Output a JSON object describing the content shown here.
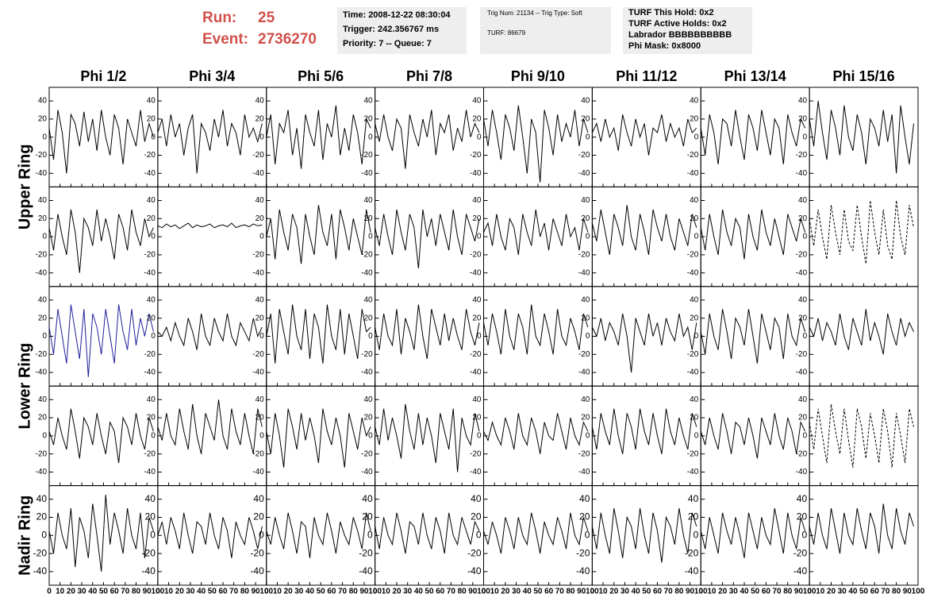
{
  "header": {
    "run_label": "Run:",
    "run": "25",
    "event_label": "Event:",
    "event": "2736270",
    "box1": [
      "Time: 2008-12-22 08:30:04",
      "Trigger: 242.356767 ms",
      "Priority: 7 -- Queue: 7"
    ],
    "box2": [
      "Trig Num: 21134 -- Trig Type: Soft",
      "TURF: 86679"
    ],
    "box3": [
      "TURF This Hold: 0x2",
      "TURF Active Holds: 0x2",
      "Labrador BBBBBBBBBB",
      "Phi Mask: 0x8000"
    ]
  },
  "chart_data": {
    "type": "line",
    "columns": [
      "Phi 1/2",
      "Phi 3/4",
      "Phi 5/6",
      "Phi 7/8",
      "Phi 9/10",
      "Phi 11/12",
      "Phi 13/14",
      "Phi 15/16"
    ],
    "row_labels": [
      "Upper Ring",
      "Lower Ring",
      "Nadir Ring"
    ],
    "xlim": [
      0,
      100
    ],
    "xticks": [
      0,
      10,
      20,
      30,
      40,
      50,
      60,
      70,
      80,
      90,
      100
    ],
    "ylim": [
      -55,
      55
    ],
    "yticks": [
      -40,
      -20,
      0,
      20,
      40
    ],
    "color": "#000000",
    "x": [
      0,
      4,
      8,
      12,
      16,
      20,
      24,
      28,
      32,
      36,
      40,
      44,
      48,
      52,
      56,
      60,
      64,
      68,
      72,
      76,
      80,
      84,
      88,
      92,
      96
    ],
    "panels": [
      [
        {
          "values": [
            10,
            -25,
            30,
            5,
            -40,
            25,
            15,
            -10,
            28,
            -5,
            20,
            -15,
            30,
            0,
            -20,
            25,
            10,
            -30,
            20,
            5,
            -10,
            30,
            -5,
            15,
            0
          ]
        },
        {
          "values": [
            5,
            20,
            -10,
            25,
            0,
            15,
            -20,
            10,
            25,
            -40,
            15,
            5,
            -15,
            20,
            0,
            30,
            -10,
            15,
            5,
            -20,
            25,
            0,
            10,
            -5,
            15
          ]
        },
        {
          "values": [
            0,
            25,
            -30,
            15,
            5,
            30,
            -20,
            10,
            -35,
            25,
            5,
            -10,
            30,
            -25,
            15,
            0,
            35,
            -20,
            10,
            -15,
            25,
            5,
            -30,
            20,
            10
          ]
        },
        {
          "values": [
            15,
            -5,
            25,
            0,
            -15,
            20,
            10,
            -35,
            25,
            5,
            -10,
            20,
            0,
            30,
            -20,
            15,
            5,
            25,
            -15,
            10,
            -5,
            30,
            0,
            15,
            5
          ]
        },
        {
          "values": [
            20,
            -10,
            30,
            5,
            -25,
            25,
            10,
            -15,
            35,
            0,
            -40,
            20,
            5,
            -50,
            30,
            10,
            -20,
            25,
            -5,
            15,
            0,
            30,
            -10,
            20,
            5
          ]
        },
        {
          "values": [
            5,
            15,
            -5,
            20,
            0,
            10,
            -15,
            25,
            5,
            -10,
            20,
            0,
            15,
            -20,
            10,
            5,
            25,
            -5,
            15,
            0,
            10,
            -10,
            20,
            5,
            10
          ]
        },
        {
          "values": [
            10,
            -20,
            25,
            5,
            -30,
            20,
            15,
            -10,
            30,
            0,
            -25,
            25,
            10,
            -15,
            30,
            5,
            -20,
            20,
            10,
            -30,
            25,
            5,
            -10,
            20,
            10
          ]
        },
        {
          "values": [
            20,
            -10,
            40,
            5,
            -25,
            30,
            10,
            -20,
            35,
            0,
            -15,
            25,
            5,
            -30,
            20,
            10,
            -10,
            30,
            -5,
            25,
            -40,
            35,
            0,
            -30,
            15
          ]
        }
      ],
      [
        {
          "values": [
            10,
            -15,
            25,
            0,
            -20,
            30,
            5,
            -40,
            20,
            10,
            -10,
            30,
            -5,
            20,
            0,
            -25,
            25,
            10,
            -15,
            30,
            5,
            -10,
            20,
            0,
            10
          ]
        },
        {
          "values": [
            12,
            10,
            14,
            11,
            13,
            9,
            12,
            15,
            10,
            13,
            11,
            12,
            14,
            10,
            12,
            13,
            11,
            15,
            10,
            12,
            13,
            11,
            14,
            12,
            13
          ]
        },
        {
          "values": [
            0,
            20,
            -25,
            30,
            5,
            -15,
            25,
            10,
            -30,
            25,
            0,
            -20,
            35,
            5,
            -10,
            25,
            -25,
            30,
            10,
            -15,
            20,
            0,
            -20,
            30,
            5
          ]
        },
        {
          "values": [
            10,
            -10,
            25,
            0,
            -20,
            30,
            5,
            -15,
            25,
            10,
            -35,
            30,
            0,
            20,
            -10,
            25,
            5,
            -15,
            30,
            0,
            -20,
            25,
            10,
            -5,
            20
          ]
        },
        {
          "values": [
            5,
            15,
            -10,
            25,
            0,
            -15,
            20,
            10,
            -20,
            25,
            5,
            -10,
            30,
            0,
            15,
            -15,
            20,
            5,
            -10,
            25,
            0,
            10,
            -15,
            20,
            5
          ]
        },
        {
          "values": [
            15,
            -5,
            30,
            5,
            -20,
            25,
            10,
            -10,
            35,
            0,
            -15,
            25,
            5,
            -20,
            30,
            10,
            -5,
            25,
            0,
            -15,
            20,
            5,
            -10,
            25,
            10
          ]
        },
        {
          "values": [
            10,
            -15,
            25,
            0,
            -20,
            30,
            5,
            -10,
            20,
            10,
            -25,
            25,
            0,
            -15,
            30,
            5,
            -10,
            20,
            0,
            -20,
            25,
            10,
            -5,
            20,
            5
          ]
        },
        {
          "dashed": true,
          "values": [
            20,
            -10,
            30,
            0,
            -25,
            35,
            5,
            -20,
            30,
            -5,
            -15,
            35,
            0,
            -30,
            40,
            5,
            -20,
            30,
            -10,
            -25,
            40,
            0,
            -20,
            35,
            10
          ]
        }
      ],
      [
        {
          "color": "#1f1f9a",
          "values": [
            10,
            -20,
            30,
            0,
            -30,
            35,
            5,
            -25,
            30,
            -45,
            25,
            10,
            -20,
            30,
            0,
            -30,
            35,
            5,
            -15,
            30,
            -10,
            20,
            0,
            25,
            5
          ]
        },
        {
          "values": [
            5,
            0,
            10,
            -5,
            15,
            0,
            -10,
            20,
            5,
            -15,
            25,
            0,
            -10,
            20,
            5,
            -5,
            25,
            0,
            -10,
            15,
            5,
            -5,
            20,
            0,
            10
          ]
        },
        {
          "values": [
            0,
            25,
            -30,
            30,
            5,
            -20,
            35,
            0,
            -15,
            30,
            -25,
            25,
            10,
            -30,
            35,
            0,
            -15,
            30,
            -20,
            25,
            0,
            -25,
            30,
            5,
            10
          ]
        },
        {
          "values": [
            10,
            -15,
            25,
            0,
            -10,
            30,
            -20,
            20,
            5,
            -15,
            35,
            0,
            -25,
            30,
            10,
            -10,
            25,
            -5,
            20,
            0,
            -15,
            30,
            5,
            -10,
            15
          ]
        },
        {
          "values": [
            15,
            -10,
            25,
            5,
            -20,
            30,
            0,
            -15,
            25,
            10,
            -20,
            35,
            0,
            -10,
            25,
            5,
            -20,
            30,
            0,
            -10,
            20,
            5,
            -15,
            25,
            10
          ]
        },
        {
          "values": [
            10,
            0,
            20,
            -5,
            15,
            5,
            -10,
            25,
            0,
            -40,
            20,
            5,
            -10,
            25,
            0,
            15,
            -10,
            20,
            5,
            -5,
            25,
            0,
            10,
            -15,
            15
          ]
        },
        {
          "values": [
            5,
            -20,
            25,
            0,
            -15,
            30,
            5,
            -25,
            20,
            10,
            -10,
            30,
            0,
            -30,
            25,
            5,
            -15,
            20,
            10,
            -25,
            25,
            0,
            -10,
            20,
            5
          ]
        },
        {
          "values": [
            10,
            0,
            20,
            -5,
            15,
            5,
            -10,
            25,
            0,
            -15,
            20,
            5,
            -10,
            30,
            -5,
            15,
            0,
            -20,
            25,
            5,
            -10,
            20,
            0,
            15,
            5
          ]
        }
      ],
      [
        {
          "values": [
            5,
            -10,
            20,
            0,
            -15,
            30,
            5,
            -25,
            20,
            10,
            -10,
            25,
            0,
            -20,
            15,
            5,
            -30,
            20,
            10,
            -10,
            25,
            0,
            -15,
            20,
            5
          ]
        },
        {
          "values": [
            10,
            -5,
            25,
            0,
            -10,
            30,
            5,
            -15,
            35,
            0,
            -20,
            25,
            10,
            -5,
            40,
            0,
            -15,
            30,
            5,
            -10,
            25,
            0,
            -20,
            30,
            10
          ]
        },
        {
          "values": [
            5,
            -20,
            25,
            0,
            -35,
            30,
            10,
            -15,
            25,
            -5,
            20,
            0,
            -30,
            30,
            5,
            -10,
            20,
            0,
            -35,
            25,
            5,
            -15,
            20,
            0,
            10
          ]
        },
        {
          "values": [
            10,
            -10,
            30,
            -5,
            20,
            0,
            -25,
            35,
            5,
            -15,
            25,
            -10,
            20,
            0,
            -30,
            25,
            5,
            -15,
            30,
            -40,
            20,
            0,
            -10,
            25,
            5
          ]
        },
        {
          "values": [
            5,
            -5,
            15,
            0,
            -10,
            20,
            5,
            -15,
            25,
            0,
            -10,
            20,
            5,
            -20,
            15,
            0,
            -5,
            25,
            5,
            -15,
            20,
            0,
            -10,
            15,
            5
          ]
        },
        {
          "values": [
            10,
            -15,
            25,
            5,
            -10,
            30,
            0,
            -20,
            25,
            10,
            -15,
            30,
            5,
            -10,
            25,
            0,
            -20,
            30,
            5,
            -10,
            20,
            0,
            -15,
            25,
            10
          ]
        },
        {
          "values": [
            5,
            -10,
            20,
            0,
            -15,
            25,
            5,
            -20,
            15,
            10,
            -10,
            20,
            0,
            -25,
            20,
            5,
            -10,
            25,
            0,
            -15,
            20,
            5,
            -20,
            15,
            5
          ]
        },
        {
          "dashed": true,
          "values": [
            15,
            -15,
            30,
            0,
            -30,
            35,
            5,
            -20,
            30,
            -5,
            -35,
            30,
            10,
            -25,
            25,
            0,
            -30,
            30,
            5,
            -35,
            25,
            0,
            -30,
            30,
            10
          ]
        }
      ],
      [
        {
          "values": [
            5,
            -20,
            25,
            0,
            -15,
            30,
            -35,
            20,
            5,
            -25,
            35,
            0,
            -40,
            45,
            -10,
            25,
            5,
            -20,
            30,
            0,
            -15,
            25,
            -25,
            20,
            5
          ]
        },
        {
          "values": [
            0,
            15,
            -10,
            20,
            5,
            -15,
            25,
            0,
            -20,
            15,
            10,
            -10,
            25,
            0,
            -15,
            20,
            5,
            -25,
            15,
            0,
            -10,
            20,
            5,
            -15,
            10
          ]
        },
        {
          "values": [
            5,
            -10,
            20,
            0,
            -15,
            25,
            5,
            -20,
            15,
            10,
            -25,
            20,
            0,
            -10,
            25,
            5,
            -20,
            15,
            0,
            -10,
            20,
            5,
            -15,
            25,
            5
          ]
        },
        {
          "values": [
            10,
            -15,
            20,
            0,
            -10,
            25,
            5,
            -20,
            15,
            10,
            -10,
            25,
            0,
            -15,
            20,
            5,
            -20,
            25,
            0,
            -10,
            20,
            5,
            -10,
            15,
            5
          ]
        },
        {
          "values": [
            5,
            -10,
            15,
            0,
            -20,
            20,
            5,
            -15,
            20,
            0,
            -10,
            25,
            5,
            -20,
            15,
            0,
            -10,
            20,
            5,
            -15,
            25,
            0,
            -10,
            20,
            5
          ]
        },
        {
          "values": [
            10,
            -15,
            25,
            0,
            -20,
            30,
            5,
            -25,
            20,
            10,
            -15,
            30,
            0,
            -20,
            25,
            5,
            -30,
            20,
            10,
            -10,
            30,
            0,
            -20,
            25,
            10
          ]
        },
        {
          "values": [
            5,
            -15,
            20,
            0,
            -20,
            25,
            5,
            -10,
            20,
            0,
            -25,
            25,
            5,
            -15,
            20,
            0,
            -10,
            30,
            5,
            -20,
            25,
            0,
            -15,
            20,
            5
          ]
        },
        {
          "values": [
            10,
            -10,
            25,
            0,
            -15,
            30,
            5,
            -20,
            25,
            0,
            -10,
            30,
            5,
            -15,
            25,
            10,
            -20,
            35,
            0,
            -15,
            30,
            5,
            -10,
            25,
            10
          ]
        }
      ]
    ]
  }
}
